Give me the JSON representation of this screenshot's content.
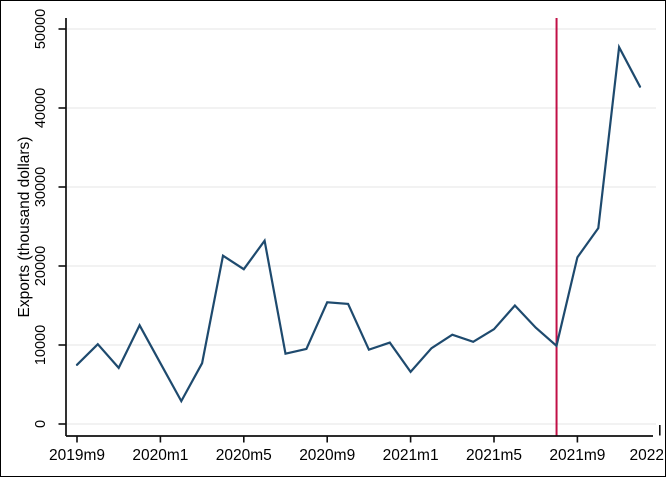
{
  "figure": {
    "title": "",
    "ylabel": "Exports (thousand dollars)"
  },
  "chart_data": {
    "type": "line",
    "title": "",
    "xlabel": "",
    "ylabel": "Exports (thousand dollars)",
    "legend": "none",
    "grid": "horizontal",
    "categories": [
      "2019m9",
      "2019m10",
      "2019m11",
      "2019m12",
      "2020m1",
      "2020m2",
      "2020m3",
      "2020m4",
      "2020m5",
      "2020m6",
      "2020m7",
      "2020m8",
      "2020m9",
      "2020m10",
      "2020m11",
      "2020m12",
      "2021m1",
      "2021m2",
      "2021m3",
      "2021m4",
      "2021m5",
      "2021m6",
      "2021m7",
      "2021m8",
      "2021m9",
      "2021m10",
      "2021m11",
      "2021m12"
    ],
    "series": [
      {
        "name": "Exports (thousand dollars)",
        "color": "#1e4a6e",
        "values": [
          7500,
          10100,
          7100,
          12500,
          7700,
          2900,
          7700,
          21300,
          19600,
          23200,
          8900,
          9500,
          15400,
          15200,
          9400,
          10300,
          6600,
          9600,
          11300,
          10400,
          12000,
          15000,
          12200,
          9900,
          21100,
          24800,
          47700,
          42700
        ]
      }
    ],
    "ylim": [
      0,
      50000
    ],
    "yticks": [
      0,
      10000,
      20000,
      30000,
      40000,
      50000
    ],
    "xticks": [
      {
        "label": "2019m9",
        "month": 0
      },
      {
        "label": "2020m1",
        "month": 4
      },
      {
        "label": "2020m5",
        "month": 8
      },
      {
        "label": "2020m9",
        "month": 12
      },
      {
        "label": "2021m1",
        "month": 16
      },
      {
        "label": "2021m5",
        "month": 20
      },
      {
        "label": "2021m9",
        "month": 24
      },
      {
        "label": "2022",
        "month": 28
      }
    ],
    "vline": {
      "x": "2021m8",
      "color": "#c11046"
    },
    "colors": {
      "line": "#1e4a6e",
      "event_line": "#c11046",
      "grid": "#ededee",
      "axis": "#0f0f0f",
      "background": "#ffffff",
      "border": "#000000"
    }
  }
}
